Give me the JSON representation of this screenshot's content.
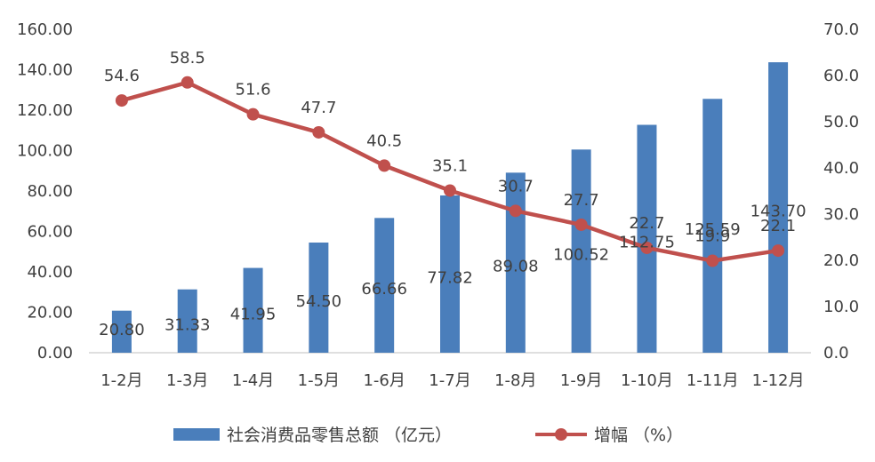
{
  "chart_data": {
    "type": "bar+line",
    "categories": [
      "1-2月",
      "1-3月",
      "1-4月",
      "1-5月",
      "1-6月",
      "1-7月",
      "1-8月",
      "1-9月",
      "1-10月",
      "1-11月",
      "1-12月"
    ],
    "series": [
      {
        "name": "社会消费品零售总额 （亿元）",
        "type": "bar",
        "axis": "left",
        "color": "#4A7EBB",
        "values": [
          20.8,
          31.33,
          41.95,
          54.5,
          66.66,
          77.82,
          89.08,
          100.52,
          112.75,
          125.59,
          143.7
        ],
        "labels": [
          "20.80",
          "31.33",
          "41.95",
          "54.50",
          "66.66",
          "77.82",
          "89.08",
          "100.52",
          "112.75",
          "125.59",
          "143.70"
        ]
      },
      {
        "name": "增幅 （%）",
        "type": "line",
        "axis": "right",
        "color": "#C0504D",
        "values": [
          54.6,
          58.5,
          51.6,
          47.7,
          40.5,
          35.1,
          30.7,
          27.7,
          22.7,
          19.9,
          22.1
        ],
        "labels": [
          "54.6",
          "58.5",
          "51.6",
          "47.7",
          "40.5",
          "35.1",
          "30.7",
          "27.7",
          "22.7",
          "19.9",
          "22.1"
        ]
      }
    ],
    "y_left": {
      "min": 0,
      "max": 160,
      "step": 20,
      "ticks": [
        "0.00",
        "20.00",
        "40.00",
        "60.00",
        "80.00",
        "100.00",
        "120.00",
        "140.00",
        "160.00"
      ]
    },
    "y_right": {
      "min": 0,
      "max": 70,
      "step": 10,
      "ticks": [
        "0.0",
        "10.0",
        "20.0",
        "30.0",
        "40.0",
        "50.0",
        "60.0",
        "70.0"
      ]
    },
    "grid": false,
    "legend": "bottom"
  }
}
